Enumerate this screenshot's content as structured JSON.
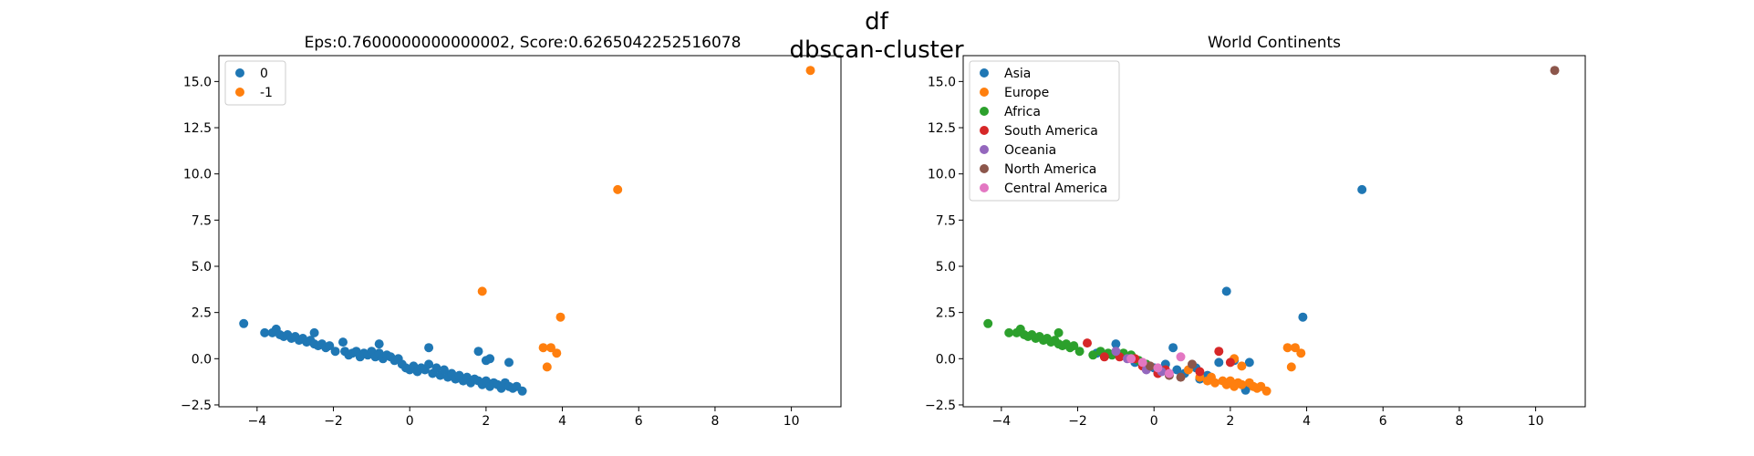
{
  "figure": {
    "suptitle_line1": "df",
    "suptitle_line2": "dbscan-cluster"
  },
  "chart_data": [
    {
      "type": "scatter",
      "title": "Eps:0.7600000000000002, Score:0.6265042252516078",
      "xlabel": "",
      "ylabel": "",
      "xlim": [
        -5,
        11.3
      ],
      "ylim": [
        -2.6,
        16.4
      ],
      "xticks": [
        -4,
        -2,
        0,
        2,
        4,
        6,
        8,
        10
      ],
      "yticks": [
        -2.5,
        0.0,
        2.5,
        5.0,
        7.5,
        10.0,
        12.5,
        15.0
      ],
      "ytick_labels": [
        "−2.5",
        "0.0",
        "2.5",
        "5.0",
        "7.5",
        "10.0",
        "12.5",
        "15.0"
      ],
      "xtick_labels": [
        "−4",
        "−2",
        "0",
        "2",
        "4",
        "6",
        "8",
        "10"
      ],
      "grid": false,
      "legend_position": "top-left",
      "series": [
        {
          "name": "0",
          "color": "#1f77b4",
          "points": [
            [
              -4.35,
              1.9
            ],
            [
              -3.8,
              1.4
            ],
            [
              -3.6,
              1.4
            ],
            [
              -3.5,
              1.6
            ],
            [
              -3.4,
              1.3
            ],
            [
              -3.3,
              1.2
            ],
            [
              -3.2,
              1.3
            ],
            [
              -3.1,
              1.1
            ],
            [
              -3.0,
              1.2
            ],
            [
              -2.9,
              1.0
            ],
            [
              -2.8,
              1.1
            ],
            [
              -2.7,
              0.9
            ],
            [
              -2.6,
              1.0
            ],
            [
              -2.5,
              0.8
            ],
            [
              -2.5,
              1.4
            ],
            [
              -2.4,
              0.7
            ],
            [
              -2.3,
              0.8
            ],
            [
              -2.2,
              0.6
            ],
            [
              -2.1,
              0.7
            ],
            [
              -1.95,
              0.4
            ],
            [
              -1.75,
              0.9
            ],
            [
              -1.7,
              0.4
            ],
            [
              -1.6,
              0.2
            ],
            [
              -1.5,
              0.3
            ],
            [
              -1.4,
              0.4
            ],
            [
              -1.3,
              0.1
            ],
            [
              -1.2,
              0.3
            ],
            [
              -1.1,
              0.2
            ],
            [
              -1.0,
              0.4
            ],
            [
              -0.9,
              0.1
            ],
            [
              -0.8,
              0.3
            ],
            [
              -0.8,
              0.8
            ],
            [
              -0.7,
              0.0
            ],
            [
              -0.6,
              0.2
            ],
            [
              -0.5,
              0.1
            ],
            [
              -0.4,
              -0.1
            ],
            [
              -0.3,
              0.0
            ],
            [
              -0.2,
              -0.3
            ],
            [
              -0.1,
              -0.5
            ],
            [
              0.0,
              -0.6
            ],
            [
              0.1,
              -0.4
            ],
            [
              0.2,
              -0.7
            ],
            [
              0.3,
              -0.5
            ],
            [
              0.4,
              -0.6
            ],
            [
              0.5,
              0.6
            ],
            [
              0.5,
              -0.3
            ],
            [
              0.6,
              -0.8
            ],
            [
              0.7,
              -0.5
            ],
            [
              0.8,
              -0.9
            ],
            [
              0.9,
              -0.6
            ],
            [
              1.0,
              -1.0
            ],
            [
              1.1,
              -0.8
            ],
            [
              1.2,
              -1.1
            ],
            [
              1.3,
              -0.9
            ],
            [
              1.4,
              -1.2
            ],
            [
              1.5,
              -1.0
            ],
            [
              1.6,
              -1.3
            ],
            [
              1.7,
              -1.1
            ],
            [
              1.8,
              -1.2
            ],
            [
              1.8,
              0.4
            ],
            [
              1.9,
              -1.4
            ],
            [
              2.0,
              -0.1
            ],
            [
              2.0,
              -1.2
            ],
            [
              2.1,
              0.0
            ],
            [
              2.1,
              -1.5
            ],
            [
              2.2,
              -1.3
            ],
            [
              2.3,
              -1.4
            ],
            [
              2.4,
              -1.6
            ],
            [
              2.5,
              -1.3
            ],
            [
              2.6,
              -1.5
            ],
            [
              2.6,
              -0.2
            ],
            [
              2.7,
              -1.6
            ],
            [
              2.8,
              -1.5
            ],
            [
              2.95,
              -1.75
            ]
          ]
        },
        {
          "name": "-1",
          "color": "#ff7f0e",
          "points": [
            [
              1.9,
              3.65
            ],
            [
              3.5,
              0.6
            ],
            [
              3.6,
              -0.45
            ],
            [
              3.7,
              0.6
            ],
            [
              3.85,
              0.3
            ],
            [
              3.95,
              2.25
            ],
            [
              5.45,
              9.15
            ],
            [
              10.5,
              15.6
            ]
          ]
        }
      ]
    },
    {
      "type": "scatter",
      "title": "World Continents",
      "xlabel": "",
      "ylabel": "",
      "xlim": [
        -5,
        11.3
      ],
      "ylim": [
        -2.6,
        16.4
      ],
      "xticks": [
        -4,
        -2,
        0,
        2,
        4,
        6,
        8,
        10
      ],
      "yticks": [
        -2.5,
        0.0,
        2.5,
        5.0,
        7.5,
        10.0,
        12.5,
        15.0
      ],
      "ytick_labels": [
        "−2.5",
        "0.0",
        "2.5",
        "5.0",
        "7.5",
        "10.0",
        "12.5",
        "15.0"
      ],
      "xtick_labels": [
        "−4",
        "−2",
        "0",
        "2",
        "4",
        "6",
        "8",
        "10"
      ],
      "grid": false,
      "legend_position": "top-left",
      "series": [
        {
          "name": "Asia",
          "color": "#1f77b4",
          "points": [
            [
              1.9,
              3.65
            ],
            [
              3.9,
              2.25
            ],
            [
              5.45,
              9.15
            ],
            [
              0.5,
              0.6
            ],
            [
              -1.0,
              0.8
            ],
            [
              0.0,
              -0.5
            ],
            [
              0.3,
              -0.3
            ],
            [
              1.2,
              -1.1
            ],
            [
              1.7,
              -0.2
            ],
            [
              2.1,
              -0.1
            ],
            [
              2.5,
              -0.2
            ],
            [
              -0.5,
              -0.2
            ],
            [
              -1.5,
              0.3
            ],
            [
              0.8,
              -0.8
            ],
            [
              1.4,
              -0.9
            ],
            [
              2.4,
              -1.7
            ],
            [
              1.1,
              -0.5
            ],
            [
              0.6,
              -0.6
            ]
          ]
        },
        {
          "name": "Europe",
          "color": "#ff7f0e",
          "points": [
            [
              3.5,
              0.6
            ],
            [
              3.6,
              -0.45
            ],
            [
              3.7,
              0.6
            ],
            [
              3.85,
              0.3
            ],
            [
              1.2,
              -1.0
            ],
            [
              1.4,
              -1.2
            ],
            [
              1.6,
              -1.3
            ],
            [
              1.8,
              -1.2
            ],
            [
              1.9,
              -1.4
            ],
            [
              2.0,
              -1.2
            ],
            [
              2.1,
              -1.5
            ],
            [
              2.2,
              -1.3
            ],
            [
              2.3,
              -1.4
            ],
            [
              2.5,
              -1.3
            ],
            [
              2.6,
              -1.5
            ],
            [
              2.7,
              -1.6
            ],
            [
              2.8,
              -1.5
            ],
            [
              2.95,
              -1.75
            ],
            [
              2.3,
              -0.4
            ],
            [
              1.5,
              -1.0
            ],
            [
              2.1,
              0.0
            ],
            [
              0.9,
              -0.6
            ]
          ]
        },
        {
          "name": "Africa",
          "color": "#2ca02c",
          "points": [
            [
              -4.35,
              1.9
            ],
            [
              -3.8,
              1.4
            ],
            [
              -3.6,
              1.4
            ],
            [
              -3.5,
              1.6
            ],
            [
              -3.4,
              1.3
            ],
            [
              -3.3,
              1.2
            ],
            [
              -3.2,
              1.3
            ],
            [
              -3.1,
              1.1
            ],
            [
              -3.0,
              1.2
            ],
            [
              -2.9,
              1.0
            ],
            [
              -2.8,
              1.1
            ],
            [
              -2.7,
              0.9
            ],
            [
              -2.6,
              1.0
            ],
            [
              -2.5,
              0.8
            ],
            [
              -2.5,
              1.4
            ],
            [
              -2.4,
              0.7
            ],
            [
              -2.3,
              0.8
            ],
            [
              -2.2,
              0.6
            ],
            [
              -2.1,
              0.7
            ],
            [
              -1.95,
              0.4
            ],
            [
              -1.6,
              0.2
            ],
            [
              -1.4,
              0.4
            ],
            [
              -1.2,
              0.3
            ],
            [
              -1.1,
              0.2
            ],
            [
              -0.8,
              0.3
            ],
            [
              -0.6,
              0.2
            ],
            [
              -0.4,
              -0.1
            ],
            [
              -0.2,
              -0.3
            ]
          ]
        },
        {
          "name": "South America",
          "color": "#d62728",
          "points": [
            [
              -1.75,
              0.85
            ],
            [
              -1.3,
              0.1
            ],
            [
              -0.9,
              0.1
            ],
            [
              -0.5,
              0.0
            ],
            [
              0.3,
              -0.6
            ],
            [
              1.2,
              -0.7
            ],
            [
              1.7,
              0.4
            ],
            [
              2.0,
              -0.2
            ],
            [
              0.1,
              -0.8
            ],
            [
              -0.3,
              -0.4
            ]
          ]
        },
        {
          "name": "Oceania",
          "color": "#9467bd",
          "points": [
            [
              -0.7,
              0.0
            ],
            [
              -0.2,
              -0.6
            ],
            [
              0.2,
              -0.7
            ],
            [
              -1.0,
              0.4
            ]
          ]
        },
        {
          "name": "North America",
          "color": "#8c564b",
          "points": [
            [
              10.5,
              15.6
            ],
            [
              0.4,
              -0.9
            ],
            [
              0.7,
              -1.0
            ],
            [
              -0.1,
              -0.4
            ],
            [
              1.0,
              -0.3
            ]
          ]
        },
        {
          "name": "Central America",
          "color": "#e377c2",
          "points": [
            [
              0.7,
              0.1
            ],
            [
              0.1,
              -0.5
            ],
            [
              0.4,
              -0.8
            ],
            [
              -0.6,
              0.0
            ],
            [
              -0.3,
              -0.2
            ]
          ]
        }
      ]
    }
  ]
}
